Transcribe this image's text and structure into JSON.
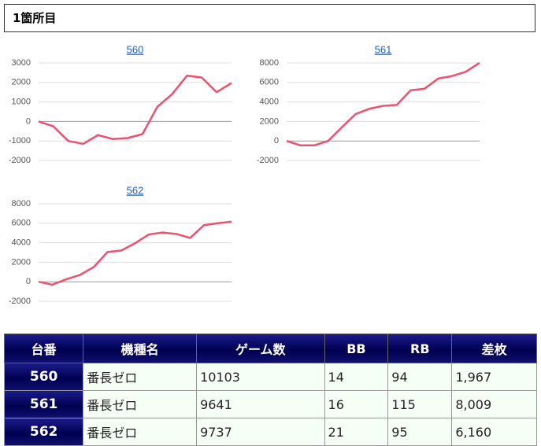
{
  "header": {
    "title": "1箇所目"
  },
  "chart_data": [
    {
      "type": "line",
      "title": "560",
      "color": "#f0506e",
      "grid": true,
      "ylim": [
        -2000,
        3000
      ],
      "yticks": [
        -2000,
        -1000,
        0,
        1000,
        2000,
        3000
      ],
      "values": [
        0,
        -250,
        -1000,
        -1150,
        -700,
        -900,
        -850,
        -650,
        750,
        1400,
        2350,
        2250,
        1500,
        1967
      ]
    },
    {
      "type": "line",
      "title": "561",
      "color": "#f0506e",
      "grid": true,
      "ylim": [
        -2000,
        8000
      ],
      "yticks": [
        -2000,
        0,
        2000,
        4000,
        6000,
        8000
      ],
      "values": [
        0,
        -450,
        -450,
        0,
        1400,
        2750,
        3300,
        3600,
        3700,
        5200,
        5350,
        6400,
        6650,
        7100,
        8009
      ]
    },
    {
      "type": "line",
      "title": "562",
      "color": "#f0506e",
      "grid": true,
      "ylim": [
        -2000,
        8000
      ],
      "yticks": [
        -2000,
        0,
        2000,
        4000,
        6000,
        8000
      ],
      "values": [
        0,
        -300,
        250,
        700,
        1500,
        3050,
        3200,
        3950,
        4850,
        5050,
        4900,
        4500,
        5800,
        6000,
        6160
      ]
    }
  ],
  "table": {
    "columns": [
      "台番",
      "機種名",
      "ゲーム数",
      "BB",
      "RB",
      "差枚"
    ],
    "rows": [
      [
        "560",
        "番長ゼロ",
        "10103",
        "14",
        "94",
        "1,967"
      ],
      [
        "561",
        "番長ゼロ",
        "9641",
        "16",
        "115",
        "8,009"
      ],
      [
        "562",
        "番長ゼロ",
        "9737",
        "21",
        "95",
        "6,160"
      ]
    ]
  }
}
